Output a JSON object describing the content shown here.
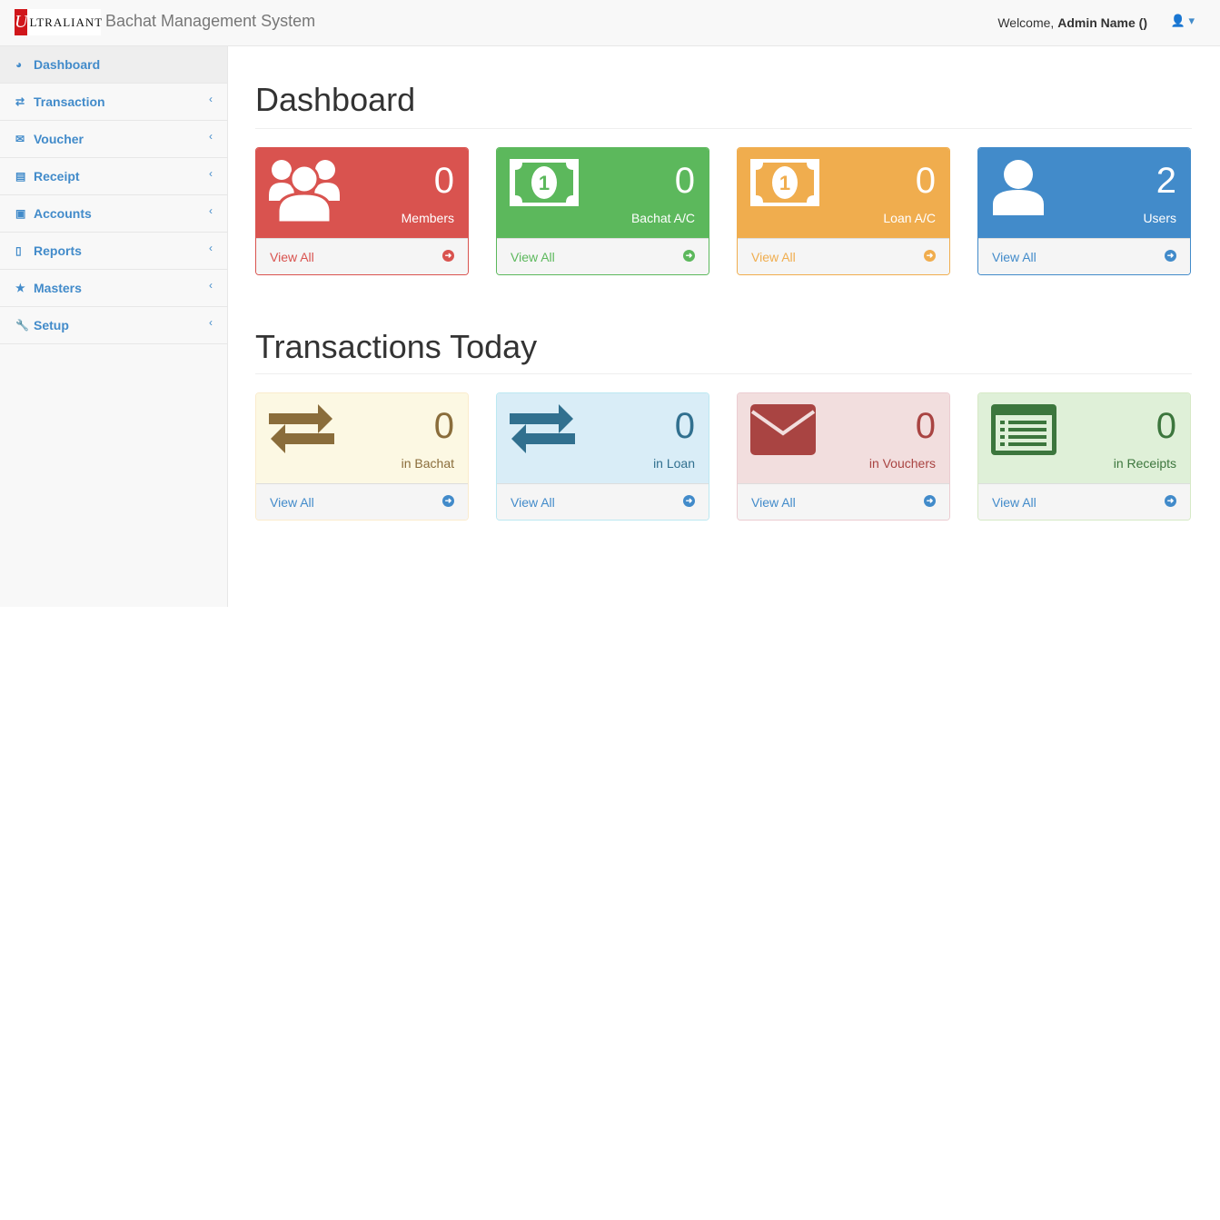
{
  "header": {
    "logo_mark": "U",
    "logo_text": "LTRALIANT",
    "brand": "Bachat Management System",
    "welcome_prefix": "Welcome, ",
    "user_name": "Admin Name ()",
    "user_menu_icon": "user-icon"
  },
  "sidebar": {
    "items": [
      {
        "label": "Dashboard",
        "icon": "dashboard-icon",
        "glyph": "◕"
      },
      {
        "label": "Transaction",
        "icon": "exchange-icon",
        "glyph": "⇄"
      },
      {
        "label": "Voucher",
        "icon": "envelope-icon",
        "glyph": "✉"
      },
      {
        "label": "Receipt",
        "icon": "list-icon",
        "glyph": "▤"
      },
      {
        "label": "Accounts",
        "icon": "money-icon",
        "glyph": "▣"
      },
      {
        "label": "Reports",
        "icon": "file-pdf-icon",
        "glyph": "▯"
      },
      {
        "label": "Masters",
        "icon": "star-icon",
        "glyph": "★"
      },
      {
        "label": "Setup",
        "icon": "wrench-icon",
        "glyph": "🔧"
      }
    ]
  },
  "dashboard": {
    "title": "Dashboard",
    "cards": [
      {
        "count": "0",
        "label": "Members",
        "link": "View All",
        "icon": "users-icon",
        "color": "#d9534f"
      },
      {
        "count": "0",
        "label": "Bachat A/C",
        "link": "View All",
        "icon": "money-icon",
        "color": "#5cb85c"
      },
      {
        "count": "0",
        "label": "Loan A/C",
        "link": "View All",
        "icon": "money-icon",
        "color": "#f0ad4e"
      },
      {
        "count": "2",
        "label": "Users",
        "link": "View All",
        "icon": "user-icon",
        "color": "#428bca"
      }
    ]
  },
  "transactions": {
    "title": "Transactions Today",
    "cards": [
      {
        "count": "0",
        "label": "in Bachat",
        "link": "View All",
        "icon": "exchange-icon",
        "bg": "#fcf8e3",
        "fg": "#8a6d3b",
        "border": "#faebcc"
      },
      {
        "count": "0",
        "label": "in Loan",
        "link": "View All",
        "icon": "exchange-icon",
        "bg": "#d9edf7",
        "fg": "#31708f",
        "border": "#bce8f1"
      },
      {
        "count": "0",
        "label": "in Vouchers",
        "link": "View All",
        "icon": "envelope-icon",
        "bg": "#f2dede",
        "fg": "#a94442",
        "border": "#ebccd1"
      },
      {
        "count": "0",
        "label": "in Receipts",
        "link": "View All",
        "icon": "list-alt-icon",
        "bg": "#dff0d8",
        "fg": "#3c763d",
        "border": "#d6e9c6"
      }
    ]
  }
}
